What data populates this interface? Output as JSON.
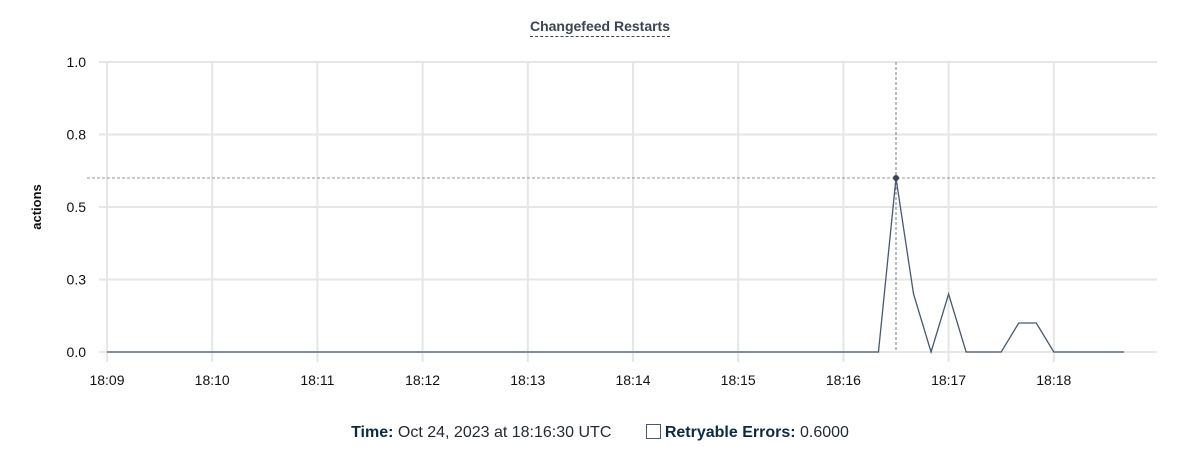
{
  "chart_data": {
    "type": "line",
    "title": "Changefeed Restarts",
    "ylabel": "actions",
    "xlabel": "",
    "ylim": [
      0,
      1
    ],
    "y_ticks": [
      0,
      0.25,
      0.5,
      0.75,
      1.0
    ],
    "y_tick_labels": [
      "0.0",
      "0.3",
      "0.5",
      "0.8",
      "1.0"
    ],
    "x_tick_labels": [
      "18:09",
      "18:10",
      "18:11",
      "18:12",
      "18:13",
      "18:14",
      "18:15",
      "18:16",
      "18:17",
      "18:18"
    ],
    "grid": true,
    "line_color": "#475872",
    "series": [
      {
        "name": "Retryable Errors",
        "x": [
          "18:09:00",
          "18:16:20",
          "18:16:30",
          "18:16:40",
          "18:16:50",
          "18:17:00",
          "18:17:10",
          "18:17:30",
          "18:17:40",
          "18:17:50",
          "18:18:00",
          "18:18:40"
        ],
        "values": [
          0,
          0,
          0.6,
          0.2,
          0,
          0.2,
          0,
          0,
          0.1,
          0.1,
          0,
          0
        ]
      }
    ],
    "hover": {
      "x": "18:16:30",
      "y": 0.6
    }
  },
  "legend": {
    "time_label": "Time:",
    "time_value": "Oct 24, 2023 at 18:16:30 UTC",
    "series_label": "Retryable Errors:",
    "series_value": "0.6000"
  }
}
